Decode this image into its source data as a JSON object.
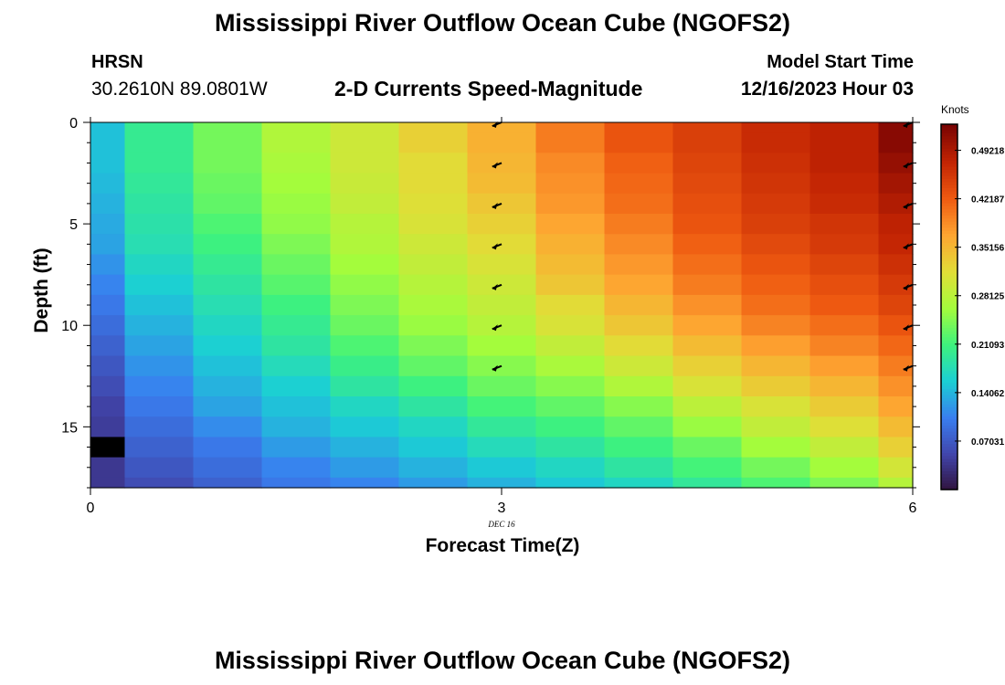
{
  "header": {
    "title": "Mississippi River Outflow Ocean Cube (NGOFS2)",
    "station": "HRSN",
    "coordinates": "30.2610N  89.0801W",
    "subtitle": "2-D Currents Speed-Magnitude",
    "model_start_label": "Model Start Time",
    "model_start_value": "12/16/2023 Hour 03"
  },
  "footer": {
    "title": "Mississippi River Outflow Ocean Cube (NGOFS2)"
  },
  "colors": {
    "no_data": "#000000",
    "arrow": "#000000"
  },
  "chart_data": {
    "type": "heatmap",
    "xlabel": "Forecast Time(Z)",
    "ylabel": "Depth (ft)",
    "x_tick_values": [
      0,
      3,
      6
    ],
    "x_tick_labels": [
      "0",
      "3",
      "6"
    ],
    "x_date_label": "DEC 16",
    "y_tick_values": [
      0,
      5,
      10,
      15
    ],
    "y_tick_labels": [
      "0",
      "5",
      "10",
      "15"
    ],
    "xlim": [
      0,
      6
    ],
    "ylim": [
      0,
      18
    ],
    "x": [
      0,
      0.5,
      1,
      1.5,
      2,
      2.5,
      3,
      3.5,
      4,
      4.5,
      5,
      5.5,
      6
    ],
    "depth": [
      0,
      1,
      2,
      3,
      4,
      5,
      6,
      7,
      8,
      9,
      10,
      11,
      12,
      13,
      14,
      15,
      16,
      17,
      18
    ],
    "values": [
      [
        0.15,
        0.2,
        0.24,
        0.275,
        0.3,
        0.33,
        0.36,
        0.4,
        0.43,
        0.45,
        0.47,
        0.48,
        0.52
      ],
      [
        0.15,
        0.2,
        0.24,
        0.275,
        0.3,
        0.33,
        0.36,
        0.4,
        0.43,
        0.45,
        0.47,
        0.48,
        0.52
      ],
      [
        0.15,
        0.2,
        0.24,
        0.27,
        0.3,
        0.32,
        0.355,
        0.39,
        0.42,
        0.445,
        0.465,
        0.48,
        0.51
      ],
      [
        0.145,
        0.195,
        0.235,
        0.265,
        0.295,
        0.32,
        0.35,
        0.385,
        0.415,
        0.44,
        0.46,
        0.475,
        0.5
      ],
      [
        0.14,
        0.19,
        0.23,
        0.26,
        0.29,
        0.315,
        0.34,
        0.38,
        0.41,
        0.435,
        0.455,
        0.47,
        0.49
      ],
      [
        0.135,
        0.185,
        0.22,
        0.255,
        0.28,
        0.31,
        0.33,
        0.37,
        0.4,
        0.43,
        0.45,
        0.46,
        0.48
      ],
      [
        0.13,
        0.18,
        0.21,
        0.245,
        0.275,
        0.3,
        0.32,
        0.36,
        0.39,
        0.42,
        0.44,
        0.455,
        0.475
      ],
      [
        0.12,
        0.17,
        0.2,
        0.235,
        0.265,
        0.29,
        0.31,
        0.35,
        0.38,
        0.41,
        0.43,
        0.445,
        0.465
      ],
      [
        0.11,
        0.16,
        0.19,
        0.225,
        0.255,
        0.28,
        0.3,
        0.34,
        0.37,
        0.4,
        0.42,
        0.435,
        0.455
      ],
      [
        0.1,
        0.15,
        0.18,
        0.21,
        0.245,
        0.27,
        0.29,
        0.32,
        0.355,
        0.385,
        0.41,
        0.425,
        0.445
      ],
      [
        0.09,
        0.14,
        0.17,
        0.2,
        0.235,
        0.26,
        0.28,
        0.31,
        0.34,
        0.37,
        0.395,
        0.41,
        0.43
      ],
      [
        0.08,
        0.13,
        0.16,
        0.19,
        0.22,
        0.245,
        0.265,
        0.29,
        0.32,
        0.35,
        0.375,
        0.395,
        0.415
      ],
      [
        0.07,
        0.12,
        0.15,
        0.175,
        0.205,
        0.23,
        0.25,
        0.27,
        0.3,
        0.33,
        0.355,
        0.375,
        0.4
      ],
      [
        0.06,
        0.11,
        0.14,
        0.16,
        0.19,
        0.21,
        0.235,
        0.25,
        0.275,
        0.31,
        0.335,
        0.355,
        0.385
      ],
      [
        0.05,
        0.1,
        0.13,
        0.15,
        0.17,
        0.19,
        0.215,
        0.23,
        0.25,
        0.285,
        0.31,
        0.335,
        0.37
      ],
      [
        0.045,
        0.09,
        0.115,
        0.14,
        0.155,
        0.17,
        0.195,
        0.21,
        0.23,
        0.26,
        0.29,
        0.315,
        0.35
      ],
      [
        null,
        0.08,
        0.1,
        0.125,
        0.14,
        0.155,
        0.175,
        0.19,
        0.21,
        0.235,
        0.265,
        0.29,
        0.33
      ],
      [
        0.04,
        0.07,
        0.09,
        0.11,
        0.125,
        0.14,
        0.155,
        0.17,
        0.19,
        0.215,
        0.24,
        0.265,
        0.305
      ],
      [
        0.04,
        0.06,
        0.08,
        0.1,
        0.11,
        0.125,
        0.14,
        0.155,
        0.17,
        0.195,
        0.22,
        0.245,
        0.28
      ]
    ],
    "vectors": [
      {
        "x": 3,
        "depth": 0
      },
      {
        "x": 3,
        "depth": 2
      },
      {
        "x": 3,
        "depth": 4
      },
      {
        "x": 3,
        "depth": 6
      },
      {
        "x": 3,
        "depth": 8
      },
      {
        "x": 3,
        "depth": 10
      },
      {
        "x": 3,
        "depth": 12
      },
      {
        "x": 6,
        "depth": 0
      },
      {
        "x": 6,
        "depth": 2
      },
      {
        "x": 6,
        "depth": 4
      },
      {
        "x": 6,
        "depth": 6
      },
      {
        "x": 6,
        "depth": 8
      },
      {
        "x": 6,
        "depth": 10
      },
      {
        "x": 6,
        "depth": 12
      }
    ],
    "vector_direction_deg": 205,
    "colorbar": {
      "title": "Knots",
      "min": 0.0,
      "max": 0.53,
      "tick_values": [
        0.07031,
        0.14062,
        0.21093,
        0.28125,
        0.35156,
        0.42187,
        0.49218
      ],
      "tick_labels": [
        "0.07031",
        "0.14062",
        "0.21093",
        "0.28125",
        "0.35156",
        "0.42187",
        "0.49218"
      ]
    }
  }
}
